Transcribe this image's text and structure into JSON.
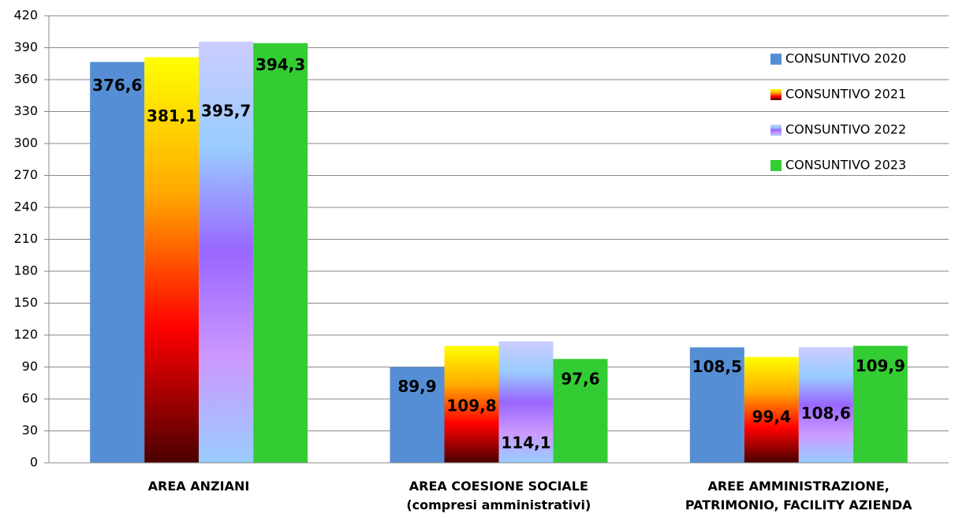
{
  "chart_data": {
    "type": "bar",
    "categories": [
      "AREA ANZIANI",
      "AREA COESIONE SOCIALE\n(compresi amministrativi)",
      "AREE AMMINISTRAZIONE,\nPATRIMONIO, FACILITY AZIENDA"
    ],
    "series": [
      {
        "name": "CONSUNTIVO 2020",
        "color": "#558ed5",
        "values": [
          376.6,
          89.9,
          108.5
        ],
        "value_labels": [
          "376,6",
          "89,9",
          "108,5"
        ]
      },
      {
        "name": "CONSUNTIVO 2021",
        "color": "#ff9900",
        "gradient": [
          "#ffff00",
          "#ffaa00",
          "#ff0000",
          "#4a0000"
        ],
        "values": [
          381.1,
          109.8,
          99.4
        ],
        "value_labels": [
          "381,1",
          "109,8",
          "99,4"
        ]
      },
      {
        "name": "CONSUNTIVO 2022",
        "color": "#9966ff",
        "gradient": [
          "#ccccff",
          "#99ccff",
          "#9966ff",
          "#cc99ff",
          "#99ccff"
        ],
        "values": [
          395.7,
          114.1,
          108.6
        ],
        "value_labels": [
          "395,7",
          "114,1",
          "108,6"
        ]
      },
      {
        "name": "CONSUNTIVO 2023",
        "color": "#33cc33",
        "values": [
          394.3,
          97.6,
          109.9
        ],
        "value_labels": [
          "394,3",
          "97,6",
          "109,9"
        ]
      }
    ],
    "ylim": [
      0,
      420
    ],
    "yticks": [
      0,
      30,
      60,
      90,
      120,
      150,
      180,
      210,
      240,
      270,
      300,
      330,
      360,
      390,
      420
    ],
    "grid": true,
    "legend": "right"
  }
}
